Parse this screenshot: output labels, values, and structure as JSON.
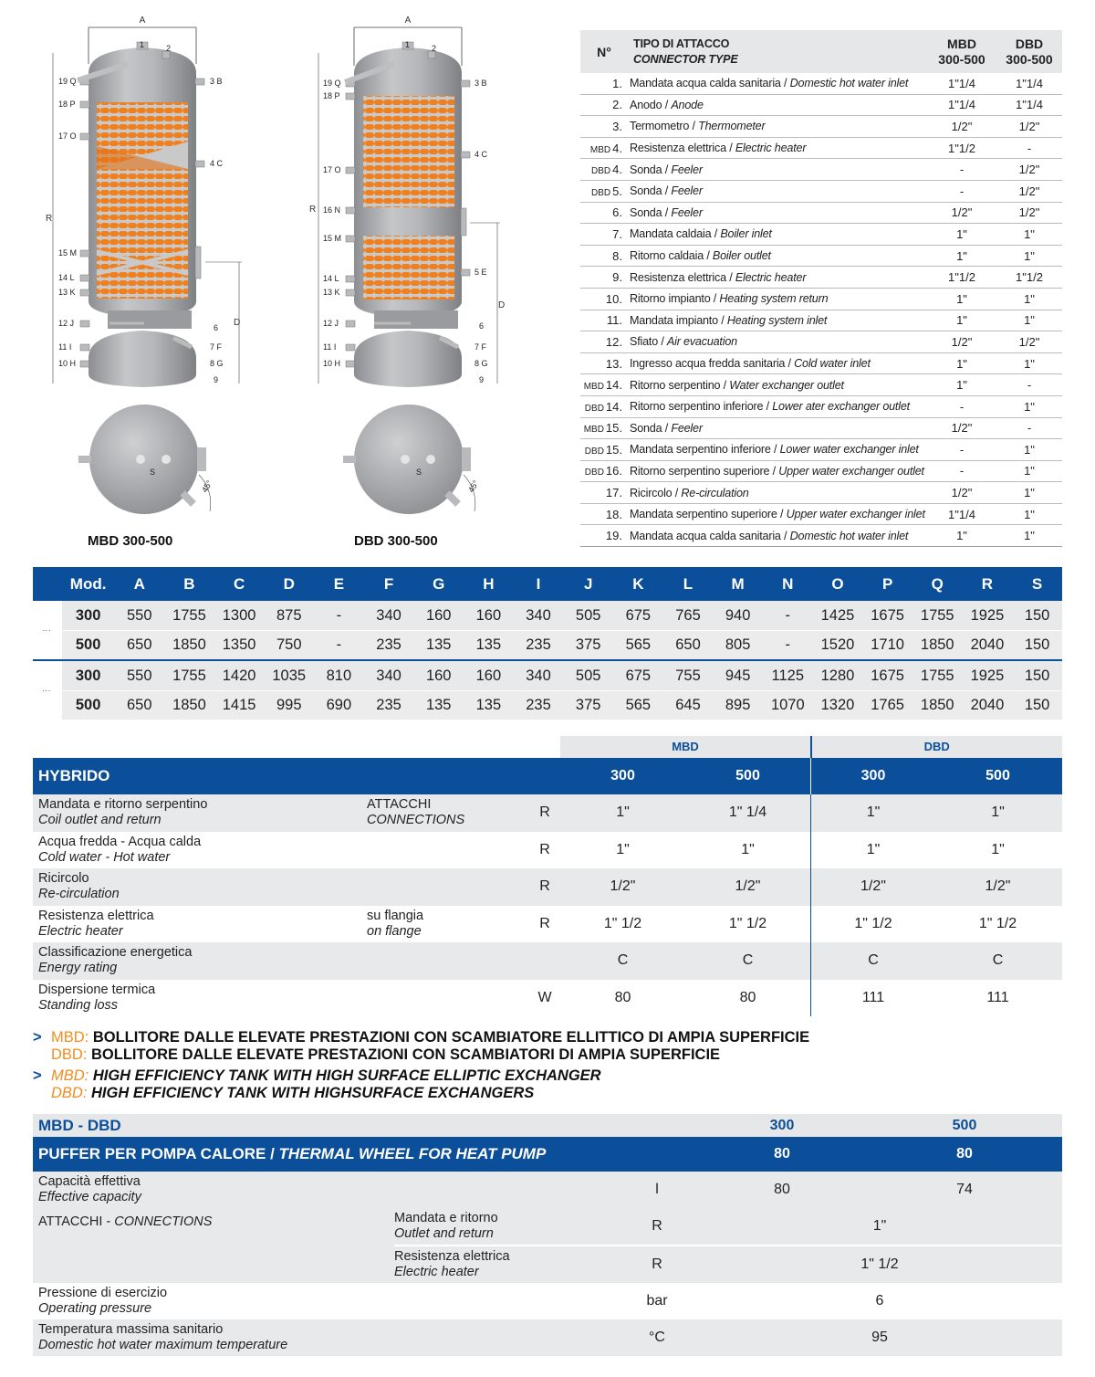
{
  "diagram": {
    "dim_labels": {
      "A": "A",
      "R": "R",
      "D": "D",
      "S": "S",
      "angle": "45°"
    },
    "mbd": {
      "caption": "MBD 300-500",
      "left_labels": [
        "19 Q",
        "18 P",
        "17 O",
        "15 M",
        "14 L",
        "13 K",
        "12 J",
        "11 I",
        "10 H"
      ],
      "right_labels": [
        "3 B",
        "4 C",
        "6",
        "7 F",
        "8 G",
        "9"
      ],
      "top_labels": [
        "1",
        "2"
      ]
    },
    "dbd": {
      "caption": "DBD 300-500",
      "left_labels": [
        "19 Q",
        "18 P",
        "17 O",
        "16 N",
        "15 M",
        "14 L",
        "13 K",
        "12 J",
        "11 I",
        "10 H"
      ],
      "right_labels": [
        "3 B",
        "4 C",
        "5 E",
        "6",
        "7 F",
        "8 G",
        "9"
      ],
      "top_labels": [
        "1",
        "2"
      ]
    }
  },
  "connectors": {
    "headers": {
      "num": "N°",
      "type_it": "TIPO DI ATTACCO",
      "type_en": "CONNECTOR TYPE",
      "mbd_1": "MBD",
      "mbd_2": "300-500",
      "dbd_1": "DBD",
      "dbd_2": "300-500"
    },
    "rows": [
      {
        "pre": "",
        "n": "1.",
        "it": "Mandata acqua calda sanitaria",
        "en": "Domestic hot water inlet",
        "mbd": "1\"1/4",
        "dbd": "1\"1/4"
      },
      {
        "pre": "",
        "n": "2.",
        "it": "Anodo",
        "en": "Anode",
        "mbd": "1\"1/4",
        "dbd": "1\"1/4"
      },
      {
        "pre": "",
        "n": "3.",
        "it": "Termometro",
        "en": "Thermometer",
        "mbd": "1/2\"",
        "dbd": "1/2\""
      },
      {
        "pre": "MBD",
        "n": "4.",
        "it": "Resistenza elettrica",
        "en": "Electric heater",
        "mbd": "1\"1/2",
        "dbd": "-"
      },
      {
        "pre": "DBD",
        "n": "4.",
        "it": "Sonda",
        "en": "Feeler",
        "mbd": "-",
        "dbd": "1/2\""
      },
      {
        "pre": "DBD",
        "n": "5.",
        "it": "Sonda",
        "en": "Feeler",
        "mbd": "-",
        "dbd": "1/2\""
      },
      {
        "pre": "",
        "n": "6.",
        "it": "Sonda",
        "en": "Feeler",
        "mbd": "1/2\"",
        "dbd": "1/2\""
      },
      {
        "pre": "",
        "n": "7.",
        "it": "Mandata caldaia",
        "en": "Boiler inlet",
        "mbd": "1\"",
        "dbd": "1\""
      },
      {
        "pre": "",
        "n": "8.",
        "it": "Ritorno caldaia",
        "en": "Boiler outlet",
        "mbd": "1\"",
        "dbd": "1\""
      },
      {
        "pre": "",
        "n": "9.",
        "it": "Resistenza elettrica",
        "en": "Electric heater",
        "mbd": "1\"1/2",
        "dbd": "1\"1/2"
      },
      {
        "pre": "",
        "n": "10.",
        "it": "Ritorno impianto",
        "en": "Heating system return",
        "mbd": "1\"",
        "dbd": "1\""
      },
      {
        "pre": "",
        "n": "11.",
        "it": "Mandata impianto",
        "en": "Heating system inlet",
        "mbd": "1\"",
        "dbd": "1\""
      },
      {
        "pre": "",
        "n": "12.",
        "it": "Sfiato",
        "en": "Air evacuation",
        "mbd": "1/2\"",
        "dbd": "1/2\""
      },
      {
        "pre": "",
        "n": "13.",
        "it": "Ingresso acqua fredda sanitaria",
        "en": "Cold water inlet",
        "mbd": "1\"",
        "dbd": "1\""
      },
      {
        "pre": "MBD",
        "n": "14.",
        "it": "Ritorno serpentino",
        "en": "Water exchanger outlet",
        "mbd": "1\"",
        "dbd": "-"
      },
      {
        "pre": "DBD",
        "n": "14.",
        "it": "Ritorno serpentino inferiore",
        "en": "Lower ater exchanger outlet",
        "mbd": "-",
        "dbd": "1\""
      },
      {
        "pre": "MBD",
        "n": "15.",
        "it": "Sonda",
        "en": "Feeler",
        "mbd": "1/2\"",
        "dbd": "-"
      },
      {
        "pre": "DBD",
        "n": "15.",
        "it": "Mandata serpentino inferiore",
        "en": "Lower water exchanger inlet",
        "mbd": "-",
        "dbd": "1\""
      },
      {
        "pre": "DBD",
        "n": "16.",
        "it": "Ritorno serpentino superiore",
        "en": "Upper water exchanger outlet",
        "mbd": "-",
        "dbd": "1\""
      },
      {
        "pre": "",
        "n": "17.",
        "it": "Ricircolo",
        "en": "Re-circulation",
        "mbd": "1/2\"",
        "dbd": "1\""
      },
      {
        "pre": "",
        "n": "18.",
        "it": "Mandata serpentino superiore",
        "en": "Upper water exchanger inlet",
        "mbd": "1\"1/4",
        "dbd": "1\""
      },
      {
        "pre": "",
        "n": "19.",
        "it": "Mandata acqua calda sanitaria",
        "en": "Domestic hot water inlet",
        "mbd": "1\"",
        "dbd": "1\""
      }
    ]
  },
  "dimensions": {
    "headers": [
      "Mod.",
      "A",
      "B",
      "C",
      "D",
      "E",
      "F",
      "G",
      "H",
      "I",
      "J",
      "K",
      "L",
      "M",
      "N",
      "O",
      "P",
      "Q",
      "R",
      "S"
    ],
    "groups": [
      {
        "label": "MBD",
        "rows": [
          [
            "300",
            "550",
            "1755",
            "1300",
            "875",
            "-",
            "340",
            "160",
            "160",
            "340",
            "505",
            "675",
            "765",
            "940",
            "-",
            "1425",
            "1675",
            "1755",
            "1925",
            "150"
          ],
          [
            "500",
            "650",
            "1850",
            "1350",
            "750",
            "-",
            "235",
            "135",
            "135",
            "235",
            "375",
            "565",
            "650",
            "805",
            "-",
            "1520",
            "1710",
            "1850",
            "2040",
            "150"
          ]
        ]
      },
      {
        "label": "DBD",
        "rows": [
          [
            "300",
            "550",
            "1755",
            "1420",
            "1035",
            "810",
            "340",
            "160",
            "160",
            "340",
            "505",
            "675",
            "755",
            "945",
            "1125",
            "1280",
            "1675",
            "1755",
            "1925",
            "150"
          ],
          [
            "500",
            "650",
            "1850",
            "1415",
            "995",
            "690",
            "235",
            "135",
            "135",
            "235",
            "375",
            "565",
            "645",
            "895",
            "1070",
            "1320",
            "1765",
            "1850",
            "2040",
            "150"
          ]
        ]
      }
    ]
  },
  "hybrido": {
    "group_mbd": "MBD",
    "group_dbd": "DBD",
    "title": "HYBRIDO",
    "cols": [
      "300",
      "500",
      "300",
      "500"
    ],
    "rows": [
      {
        "it": "Mandata e ritorno serpentino",
        "en": "Coil outlet and return",
        "it2": "ATTACCHI",
        "en2": "CONNECTIONS",
        "unit": "R",
        "v": [
          "1\"",
          "1\" 1/4",
          "1\"",
          "1\""
        ]
      },
      {
        "it": "Acqua fredda - Acqua calda",
        "en": "Cold water - Hot water",
        "it2": "",
        "en2": "",
        "unit": "R",
        "v": [
          "1\"",
          "1\"",
          "1\"",
          "1\""
        ]
      },
      {
        "it": "Ricircolo",
        "en": "Re-circulation",
        "it2": "",
        "en2": "",
        "unit": "R",
        "v": [
          "1/2\"",
          "1/2\"",
          "1/2\"",
          "1/2\""
        ]
      },
      {
        "it": "Resistenza elettrica",
        "en": "Electric heater",
        "it2": "su flangia",
        "en2": "on flange",
        "unit": "R",
        "v": [
          "1\" 1/2",
          "1\" 1/2",
          "1\" 1/2",
          "1\" 1/2"
        ]
      },
      {
        "it": "Classificazione energetica",
        "en": "Energy rating",
        "it2": "",
        "en2": "",
        "unit": "",
        "v": [
          "C",
          "C",
          "C",
          "C"
        ]
      },
      {
        "it": "Dispersione termica",
        "en": "Standing loss",
        "it2": "",
        "en2": "",
        "unit": "W",
        "v": [
          "80",
          "80",
          "111",
          "111"
        ]
      }
    ]
  },
  "notes": {
    "arrow": ">",
    "it_mbd_key": "MBD:",
    "it_mbd": " BOLLITORE DALLE ELEVATE PRESTAZIONI CON SCAMBIATORE ELLITTICO DI AMPIA SUPERFICIE",
    "it_dbd_key": "DBD:",
    "it_dbd": " BOLLITORE DALLE ELEVATE PRESTAZIONI CON SCAMBIATORI DI AMPIA SUPERFICIE",
    "en_mbd_key": "MBD:",
    "en_mbd": " HIGH EFFICIENCY TANK WITH HIGH SURFACE ELLIPTIC EXCHANGER",
    "en_dbd_key": "DBD:",
    "en_dbd": " HIGH EFFICIENCY TANK WITH HIGHSURFACE EXCHANGERS"
  },
  "puffer": {
    "top_label": "MBD - DBD",
    "top_300": "300",
    "top_500": "500",
    "title_it": "PUFFER PER POMPA CALORE / ",
    "title_en": "THERMAL WHEEL FOR HEAT PUMP",
    "title_v1": "80",
    "title_v2": "80",
    "capacity": {
      "it": "Capacità effettiva",
      "en": "Effective capacity",
      "unit": "l",
      "v1": "80",
      "v2": "74"
    },
    "connections": {
      "it": "ATTACCHI - ",
      "en": "CONNECTIONS",
      "sub": [
        {
          "it": "Mandata e ritorno",
          "en": "Outlet and return",
          "unit": "R",
          "v": "1\""
        },
        {
          "it": "Resistenza elettrica",
          "en": "Electric heater",
          "unit": "R",
          "v": "1\" 1/2"
        }
      ]
    },
    "pressure": {
      "it": "Pressione di esercizio",
      "en": "Operating pressure",
      "unit": "bar",
      "v": "6"
    },
    "temperature": {
      "it": "Temperatura massima sanitario",
      "en": "Domestic hot water maximum temperature",
      "unit": "°C",
      "v": "95"
    }
  }
}
